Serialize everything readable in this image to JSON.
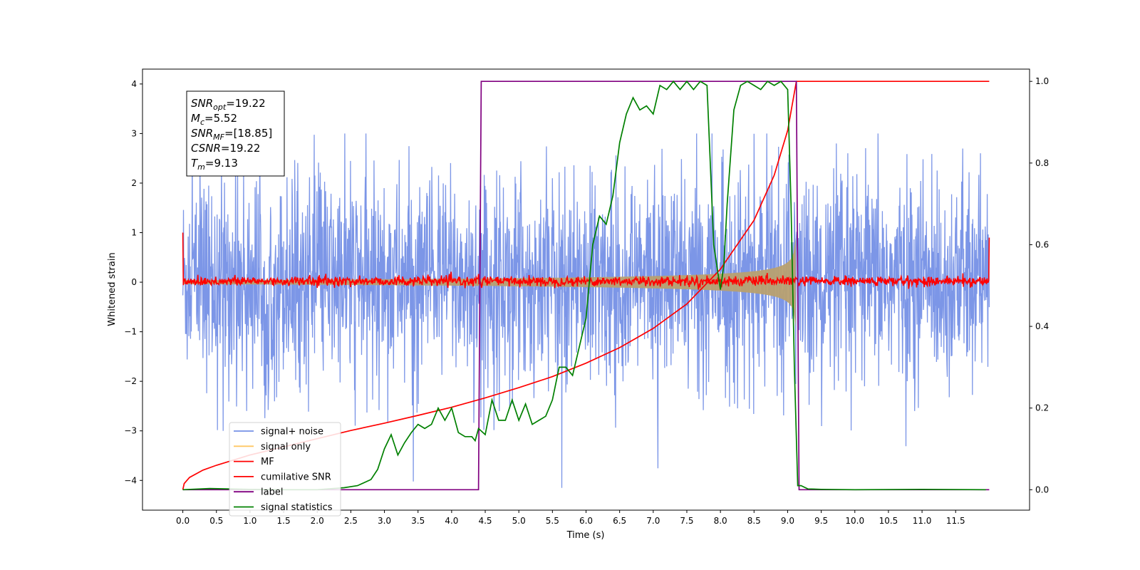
{
  "chart_data": {
    "type": "line",
    "xlabel": "Time (s)",
    "ylabel": "Whitened strain",
    "xlim": [
      -0.6,
      12.6
    ],
    "ylim_left": [
      -4.6,
      4.3
    ],
    "ylim_right": [
      -0.05,
      1.03
    ],
    "x_ticks": [
      0.0,
      0.5,
      1.0,
      1.5,
      2.0,
      2.5,
      3.0,
      3.5,
      4.0,
      4.5,
      5.0,
      5.5,
      6.0,
      6.5,
      7.0,
      7.5,
      8.0,
      8.5,
      9.0,
      9.5,
      10.0,
      10.5,
      11.0,
      11.5
    ],
    "x_tick_labels": [
      "0.0",
      "0.5",
      "1.0",
      "1.5",
      "2.0",
      "2.5",
      "3.0",
      "3.5",
      "4.0",
      "4.5",
      "5.0",
      "5.5",
      "6.0",
      "6.5",
      "7.0",
      "7.5",
      "8.0",
      "8.5",
      "9.0",
      "9.5",
      "10.0",
      "10.5",
      "11.0",
      "11.5"
    ],
    "y_left_ticks": [
      -4,
      -3,
      -2,
      -1,
      0,
      1,
      2,
      3,
      4
    ],
    "y_left_tick_labels": [
      "−4",
      "−3",
      "−2",
      "−1",
      "0",
      "1",
      "2",
      "3",
      "4"
    ],
    "y_right_ticks": [
      0.0,
      0.2,
      0.4,
      0.6,
      0.8,
      1.0
    ],
    "y_right_tick_labels": [
      "0.0",
      "0.2",
      "0.4",
      "0.6",
      "0.8",
      "1.0"
    ],
    "grid": false,
    "legend_position": "lower-left",
    "annotation": [
      {
        "main": "SNR",
        "sub": "opt",
        "value": "=19.22"
      },
      {
        "main": "M",
        "sub": "c",
        "value": "=5.52"
      },
      {
        "main": "SNR",
        "sub": "MF",
        "value": "=[18.85]"
      },
      {
        "main": "CSNR",
        "sub": "",
        "value": "=19.22"
      },
      {
        "main": "T",
        "sub": "m",
        "value": "=9.13"
      }
    ],
    "series": [
      {
        "name": "signal+ noise",
        "axis": "left",
        "color": "#7590e6",
        "kind": "noise-band",
        "x_range": [
          0.0,
          12.0
        ],
        "typical_range": [
          -1.3,
          1.4
        ],
        "extreme_range": [
          -4.15,
          3.0
        ]
      },
      {
        "name": "signal only",
        "axis": "left",
        "color": "#ffc864",
        "kind": "chirp",
        "x_range": [
          0.0,
          9.13
        ],
        "amplitude_start": 0.04,
        "amplitude_end": 0.9
      },
      {
        "name": "MF",
        "axis": "left",
        "color": "#ff0000",
        "kind": "noise-band",
        "x_range": [
          0.0,
          12.0
        ],
        "typical_range": [
          -0.08,
          0.12
        ],
        "edge_values": [
          1.0,
          0.9
        ]
      },
      {
        "name": "cumilative SNR",
        "axis": "right",
        "color": "#ff0000",
        "x": [
          0.0,
          0.02,
          0.1,
          0.3,
          0.5,
          1.0,
          1.5,
          2.0,
          2.5,
          3.0,
          3.5,
          4.0,
          4.5,
          5.0,
          5.5,
          6.0,
          6.5,
          7.0,
          7.5,
          8.0,
          8.5,
          8.8,
          9.0,
          9.13,
          12.0
        ],
        "y": [
          0.0,
          0.015,
          0.03,
          0.048,
          0.06,
          0.085,
          0.105,
          0.125,
          0.145,
          0.163,
          0.182,
          0.202,
          0.225,
          0.25,
          0.277,
          0.31,
          0.348,
          0.395,
          0.455,
          0.54,
          0.66,
          0.77,
          0.88,
          1.0,
          1.0
        ]
      },
      {
        "name": "label",
        "axis": "right",
        "color": "#800080",
        "x": [
          0.0,
          4.4,
          4.44,
          9.13,
          9.17,
          12.0
        ],
        "y": [
          0.0,
          0.0,
          1.0,
          1.0,
          0.0,
          0.0
        ]
      },
      {
        "name": "signal statistics",
        "axis": "right",
        "color": "#008000",
        "x": [
          0.0,
          0.4,
          1.0,
          1.5,
          2.0,
          2.4,
          2.6,
          2.8,
          2.9,
          3.0,
          3.1,
          3.2,
          3.3,
          3.4,
          3.5,
          3.6,
          3.7,
          3.8,
          3.9,
          4.0,
          4.1,
          4.2,
          4.3,
          4.35,
          4.4,
          4.5,
          4.6,
          4.7,
          4.8,
          4.9,
          5.0,
          5.1,
          5.2,
          5.3,
          5.4,
          5.5,
          5.6,
          5.7,
          5.8,
          5.9,
          6.0,
          6.1,
          6.2,
          6.3,
          6.4,
          6.5,
          6.6,
          6.7,
          6.8,
          6.9,
          7.0,
          7.1,
          7.2,
          7.3,
          7.4,
          7.5,
          7.6,
          7.7,
          7.8,
          7.9,
          8.0,
          8.05,
          8.1,
          8.2,
          8.3,
          8.4,
          8.5,
          8.6,
          8.7,
          8.8,
          8.9,
          9.0,
          9.05,
          9.1,
          9.15,
          9.2,
          9.3,
          9.5,
          10.0,
          11.0,
          11.95
        ],
        "y": [
          0.0,
          0.003,
          0.001,
          0.0,
          0.0,
          0.005,
          0.01,
          0.025,
          0.05,
          0.1,
          0.135,
          0.085,
          0.115,
          0.14,
          0.16,
          0.15,
          0.16,
          0.2,
          0.17,
          0.2,
          0.14,
          0.13,
          0.13,
          0.12,
          0.15,
          0.135,
          0.22,
          0.17,
          0.17,
          0.22,
          0.17,
          0.21,
          0.16,
          0.17,
          0.18,
          0.22,
          0.3,
          0.3,
          0.28,
          0.35,
          0.42,
          0.6,
          0.67,
          0.65,
          0.72,
          0.85,
          0.92,
          0.96,
          0.93,
          0.94,
          0.92,
          0.99,
          0.98,
          1.0,
          0.98,
          1.0,
          0.98,
          1.0,
          0.99,
          0.6,
          0.49,
          0.55,
          0.7,
          0.93,
          0.99,
          1.0,
          0.99,
          0.98,
          1.0,
          0.99,
          1.0,
          0.98,
          0.7,
          0.3,
          0.01,
          0.01,
          0.002,
          0.001,
          0.0,
          0.001,
          0.0
        ]
      }
    ]
  }
}
